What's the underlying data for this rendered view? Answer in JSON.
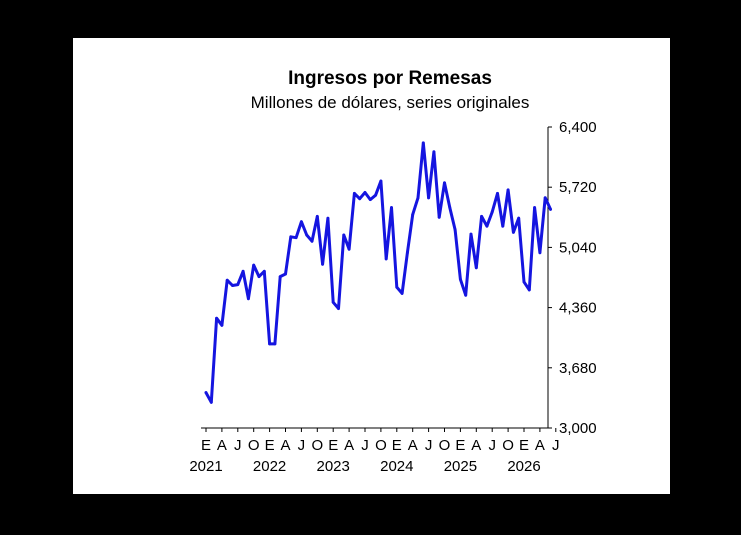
{
  "chart_data": {
    "type": "line",
    "title": "Ingresos por Remesas",
    "subtitle": "Millones de dólares, series originales",
    "xlabel": "",
    "ylabel": "",
    "ylim": [
      3000,
      6400
    ],
    "y_ticks": [
      "6,400",
      "5,720",
      "5,040",
      "4,360",
      "3,680",
      "3,000"
    ],
    "y_tick_values": [
      6400,
      5720,
      5040,
      4360,
      3680,
      3000
    ],
    "x_month_ticks": [
      {
        "index": 0,
        "label": "E"
      },
      {
        "index": 3,
        "label": "A"
      },
      {
        "index": 6,
        "label": "J"
      },
      {
        "index": 9,
        "label": "O"
      },
      {
        "index": 12,
        "label": "E"
      },
      {
        "index": 15,
        "label": "A"
      },
      {
        "index": 18,
        "label": "J"
      },
      {
        "index": 21,
        "label": "O"
      },
      {
        "index": 24,
        "label": "E"
      },
      {
        "index": 27,
        "label": "A"
      },
      {
        "index": 30,
        "label": "J"
      },
      {
        "index": 33,
        "label": "O"
      },
      {
        "index": 36,
        "label": "E"
      },
      {
        "index": 39,
        "label": "A"
      },
      {
        "index": 42,
        "label": "J"
      },
      {
        "index": 45,
        "label": "O"
      },
      {
        "index": 48,
        "label": "E"
      },
      {
        "index": 51,
        "label": "A"
      },
      {
        "index": 54,
        "label": "J"
      },
      {
        "index": 57,
        "label": "O"
      },
      {
        "index": 60,
        "label": "E"
      },
      {
        "index": 63,
        "label": "A"
      },
      {
        "index": 66,
        "label": "J"
      }
    ],
    "x_year_ticks": [
      {
        "index": 0,
        "label": "2021"
      },
      {
        "index": 12,
        "label": "2022"
      },
      {
        "index": 24,
        "label": "2023"
      },
      {
        "index": 36,
        "label": "2024"
      },
      {
        "index": 48,
        "label": "2025"
      },
      {
        "index": 60,
        "label": "2026"
      }
    ],
    "series": [
      {
        "color": "#1515e0",
        "values": [
          3400,
          3290,
          4240,
          4160,
          4670,
          4610,
          4620,
          4770,
          4460,
          4840,
          4710,
          4770,
          3950,
          3950,
          4710,
          4740,
          5160,
          5150,
          5330,
          5180,
          5110,
          5390,
          4850,
          5370,
          4420,
          4350,
          5180,
          5020,
          5650,
          5590,
          5660,
          5580,
          5630,
          5790,
          4910,
          5490,
          4590,
          4520,
          4980,
          5410,
          5600,
          6220,
          5600,
          6120,
          5380,
          5770,
          5490,
          5240,
          4680,
          4500,
          5190,
          4810,
          5390,
          5280,
          5440,
          5650,
          5280,
          5690,
          5210,
          5370,
          4650,
          4560,
          5490,
          4980,
          5600,
          5470
        ]
      }
    ]
  }
}
